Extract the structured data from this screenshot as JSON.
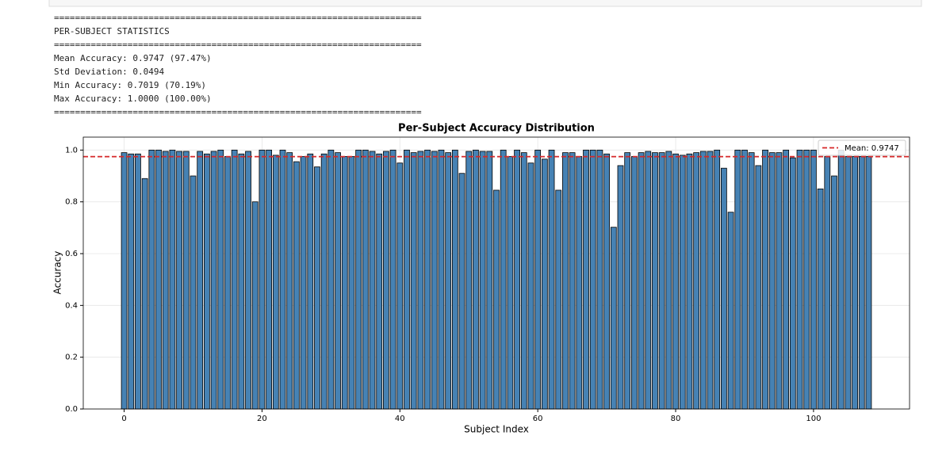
{
  "console": {
    "lines": [
      "======================================================================",
      "PER-SUBJECT STATISTICS",
      "======================================================================",
      "Mean Accuracy: 0.9747 (97.47%)",
      "Std Deviation: 0.0494",
      "Min Accuracy: 0.7019 (70.19%)",
      "Max Accuracy: 1.0000 (100.00%)",
      "======================================================================"
    ]
  },
  "chart_data": {
    "type": "bar",
    "title": "Per-Subject Accuracy Distribution",
    "x_label": "Subject Index",
    "y_label": "Accuracy",
    "color": "#4682b4",
    "edge_color": "#000000",
    "x": [
      0,
      1,
      2,
      3,
      4,
      5,
      6,
      7,
      8,
      9,
      10,
      11,
      12,
      13,
      14,
      15,
      16,
      17,
      18,
      19,
      20,
      21,
      22,
      23,
      24,
      25,
      26,
      27,
      28,
      29,
      30,
      31,
      32,
      33,
      34,
      35,
      36,
      37,
      38,
      39,
      40,
      41,
      42,
      43,
      44,
      45,
      46,
      47,
      48,
      49,
      50,
      51,
      52,
      53,
      54,
      55,
      56,
      57,
      58,
      59,
      60,
      61,
      62,
      63,
      64,
      65,
      66,
      67,
      68,
      69,
      70,
      71,
      72,
      73,
      74,
      75,
      76,
      77,
      78,
      79,
      80,
      81,
      82,
      83,
      84,
      85,
      86,
      87,
      88,
      89,
      90,
      91,
      92,
      93,
      94,
      95,
      96,
      97,
      98,
      99,
      100,
      101,
      102,
      103,
      104,
      105,
      106,
      107,
      108
    ],
    "values": [
      0.99,
      0.985,
      0.985,
      0.89,
      1.0,
      1.0,
      0.995,
      1.0,
      0.995,
      0.995,
      0.9,
      0.995,
      0.985,
      0.995,
      1.0,
      0.975,
      1.0,
      0.985,
      0.995,
      0.8,
      1.0,
      1.0,
      0.98,
      1.0,
      0.99,
      0.955,
      0.975,
      0.985,
      0.935,
      0.985,
      1.0,
      0.99,
      0.975,
      0.975,
      1.0,
      1.0,
      0.995,
      0.985,
      0.995,
      1.0,
      0.95,
      1.0,
      0.99,
      0.995,
      1.0,
      0.995,
      1.0,
      0.99,
      1.0,
      0.91,
      0.995,
      1.0,
      0.995,
      0.995,
      0.845,
      1.0,
      0.975,
      1.0,
      0.99,
      0.95,
      1.0,
      0.965,
      1.0,
      0.845,
      0.99,
      0.99,
      0.975,
      1.0,
      1.0,
      1.0,
      0.985,
      0.7019,
      0.94,
      0.99,
      0.975,
      0.99,
      0.995,
      0.99,
      0.99,
      0.995,
      0.985,
      0.98,
      0.985,
      0.99,
      0.995,
      0.995,
      1.0,
      0.93,
      0.76,
      1.0,
      1.0,
      0.99,
      0.94,
      1.0,
      0.99,
      0.99,
      1.0,
      0.97,
      1.0,
      1.0,
      1.0,
      0.85,
      0.975,
      0.9,
      1.0,
      0.975,
      0.975,
      0.975,
      0.975
    ],
    "xlim": [
      -5.93,
      113.93
    ],
    "ylim": [
      0,
      1.05
    ],
    "xticks": [
      0,
      20,
      40,
      60,
      80,
      100
    ],
    "yticks": [
      {
        "value": 0,
        "label": "0.0"
      },
      0.2,
      0.4,
      0.6,
      0.8,
      {
        "value": 1,
        "label": "1.0"
      }
    ],
    "grid": true,
    "mean_line": {
      "value": 0.9747,
      "label": "Mean: 0.9747",
      "color": "#d62728"
    },
    "legend": "upper right"
  }
}
